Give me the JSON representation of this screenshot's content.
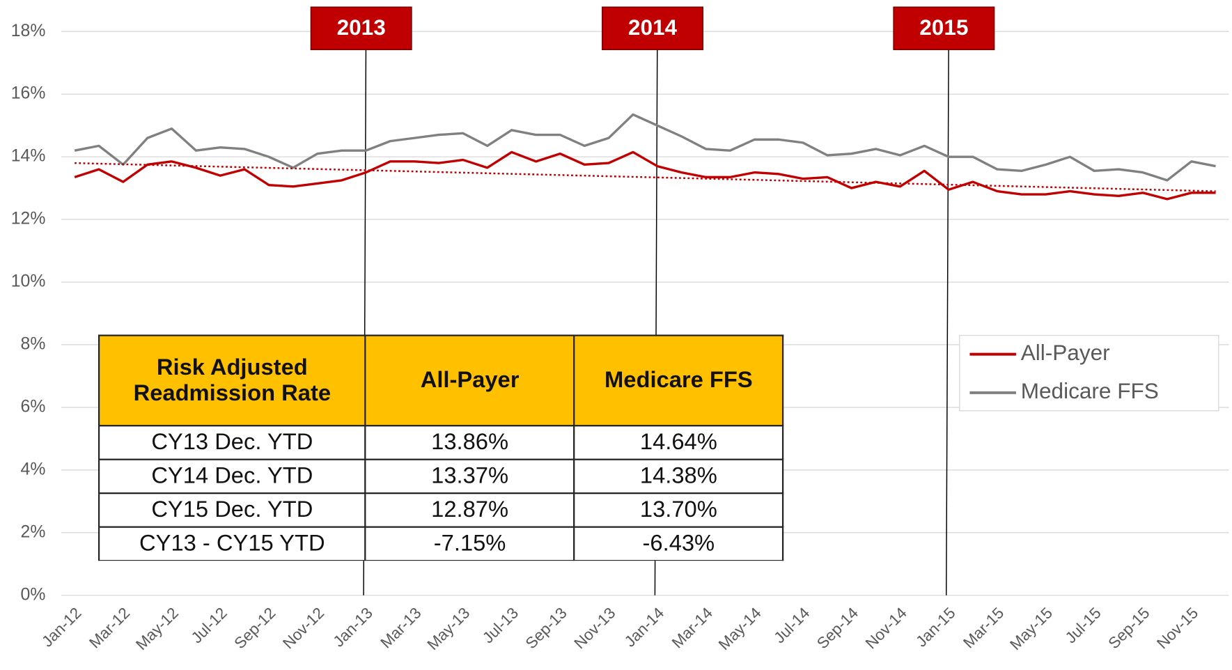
{
  "chart_data": {
    "type": "line",
    "categories": [
      "Jan-12",
      null,
      "Mar-12",
      null,
      "May-12",
      null,
      "Jul-12",
      null,
      "Sep-12",
      null,
      "Nov-12",
      null,
      "Jan-13",
      null,
      "Mar-13",
      null,
      "May-13",
      null,
      "Jul-13",
      null,
      "Sep-13",
      null,
      "Nov-13",
      null,
      "Jan-14",
      null,
      "Mar-14",
      null,
      "May-14",
      null,
      "Jul-14",
      null,
      "Sep-14",
      null,
      "Nov-14",
      null,
      "Jan-15",
      null,
      "Mar-15",
      null,
      "May-15",
      null,
      "Jul-15",
      null,
      "Sep-15",
      null,
      "Nov-15",
      null
    ],
    "series": [
      {
        "name": "All-Payer",
        "color": "#c00000",
        "values": [
          13.35,
          13.6,
          13.2,
          13.75,
          13.85,
          13.65,
          13.4,
          13.6,
          13.1,
          13.05,
          13.15,
          13.25,
          13.5,
          13.85,
          13.85,
          13.8,
          13.9,
          13.65,
          14.15,
          13.85,
          14.1,
          13.75,
          13.8,
          14.15,
          13.7,
          13.5,
          13.35,
          13.35,
          13.5,
          13.45,
          13.3,
          13.35,
          13.0,
          13.2,
          13.05,
          13.55,
          12.95,
          13.2,
          12.9,
          12.8,
          12.8,
          12.9,
          12.8,
          12.75,
          12.85,
          12.65,
          12.85,
          12.85
        ]
      },
      {
        "name": "Medicare FFS",
        "color": "#808080",
        "values": [
          14.2,
          14.35,
          13.75,
          14.6,
          14.9,
          14.2,
          14.3,
          14.25,
          14.0,
          13.65,
          14.1,
          14.2,
          14.2,
          14.5,
          14.6,
          14.7,
          14.75,
          14.35,
          14.85,
          14.7,
          14.7,
          14.35,
          14.6,
          15.35,
          15.0,
          14.65,
          14.25,
          14.2,
          14.55,
          14.55,
          14.45,
          14.05,
          14.1,
          14.25,
          14.05,
          14.35,
          14.0,
          14.0,
          13.6,
          13.55,
          13.75,
          14.0,
          13.55,
          13.6,
          13.5,
          13.25,
          13.85,
          13.7
        ]
      }
    ],
    "trendline": {
      "color": "#c00000",
      "values": [
        13.8,
        12.9
      ]
    },
    "ylim": [
      0,
      18
    ],
    "yticks": [
      {
        "value": 0,
        "label": "0%"
      },
      {
        "value": 2,
        "label": "2%"
      },
      {
        "value": 4,
        "label": "4%"
      },
      {
        "value": 6,
        "label": "6%"
      },
      {
        "value": 8,
        "label": "8%"
      },
      {
        "value": 10,
        "label": "10%"
      },
      {
        "value": 12,
        "label": "12%"
      },
      {
        "value": 14,
        "label": "14%"
      },
      {
        "value": 16,
        "label": "16%"
      },
      {
        "value": 18,
        "label": "18%"
      }
    ],
    "grid": true,
    "legend": "right",
    "annotations": [
      {
        "text": "2013",
        "at": "Jan-13"
      },
      {
        "text": "2014",
        "at": "Jan-14"
      },
      {
        "text": "2015",
        "at": "Jan-15"
      }
    ],
    "table": {
      "columns": [
        "Risk Adjusted Readmission Rate",
        "All-Payer",
        "Medicare FFS"
      ],
      "rows": [
        [
          "CY13 Dec. YTD",
          "13.86%",
          "14.64%"
        ],
        [
          "CY14 Dec. YTD",
          "13.37%",
          "14.38%"
        ],
        [
          "CY15 Dec. YTD",
          "12.87%",
          "13.70%"
        ],
        [
          "CY13 - CY15 YTD",
          "-7.15%",
          "-6.43%"
        ]
      ]
    }
  }
}
